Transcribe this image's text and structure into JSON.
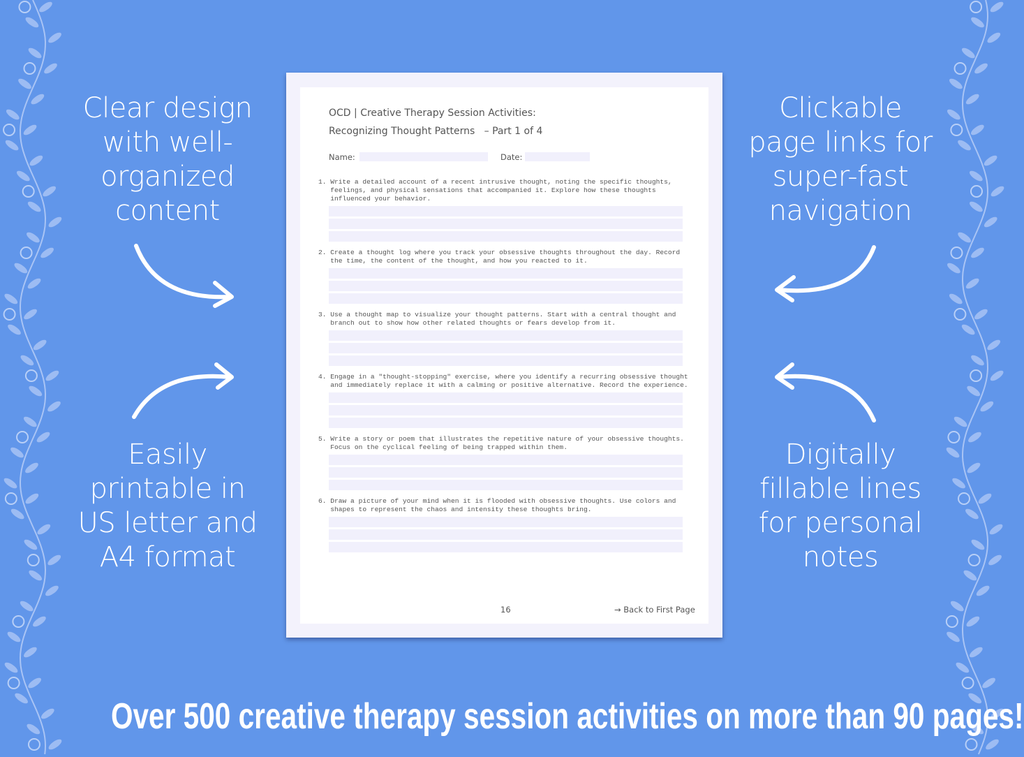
{
  "features": {
    "top_left": "Clear design with well-organized content",
    "top_right": "Clickable page links for super-fast navigation",
    "bottom_left": "Easily printable in US letter and A4 format",
    "bottom_right": "Digitally fillable lines for personal notes"
  },
  "feature_lines": {
    "top_left": [
      "Clear design",
      "with well-",
      "organized",
      "content"
    ],
    "top_right": [
      "Clickable",
      "page links for",
      "super-fast",
      "navigation"
    ],
    "bottom_left": [
      "Easily",
      "printable in",
      "US letter and",
      "A4 format"
    ],
    "bottom_right": [
      "Digitally",
      "fillable lines",
      "for personal",
      "notes"
    ]
  },
  "document": {
    "title_line1": "OCD | Creative Therapy Session Activities:",
    "title_line2": "Recognizing Thought Patterns   – Part 1 of 4",
    "name_label": "Name:",
    "date_label": "Date:",
    "questions": [
      "1. Write a detailed account of a recent intrusive thought, noting the specific thoughts,\n   feelings, and physical sensations that accompanied it. Explore how these thoughts\n   influenced your behavior.",
      "2. Create a thought log where you track your obsessive thoughts throughout the day. Record\n   the time, the content of the thought, and how you reacted to it.",
      "3. Use a thought map to visualize your thought patterns. Start with a central thought and\n   branch out to show how other related thoughts or fears develop from it.",
      "4. Engage in a \"thought-stopping\" exercise, where you identify a recurring obsessive thought\n   and immediately replace it with a calming or positive alternative. Record the experience.",
      "5. Write a story or poem that illustrates the repetitive nature of your obsessive thoughts.\n   Focus on the cyclical feeling of being trapped within them.",
      "6. Draw a picture of your mind when it is flooded with obsessive thoughts. Use colors and\n   shapes to represent the chaos and intensity these thoughts bring."
    ],
    "page_number": "16",
    "back_link": "→ Back to First Page"
  },
  "banner": "Over 500 creative therapy session activities on more than 90 pages!",
  "colors": {
    "background": "#6196ea",
    "field": "#f1f0fc",
    "page_border": "#f3f2fc"
  }
}
